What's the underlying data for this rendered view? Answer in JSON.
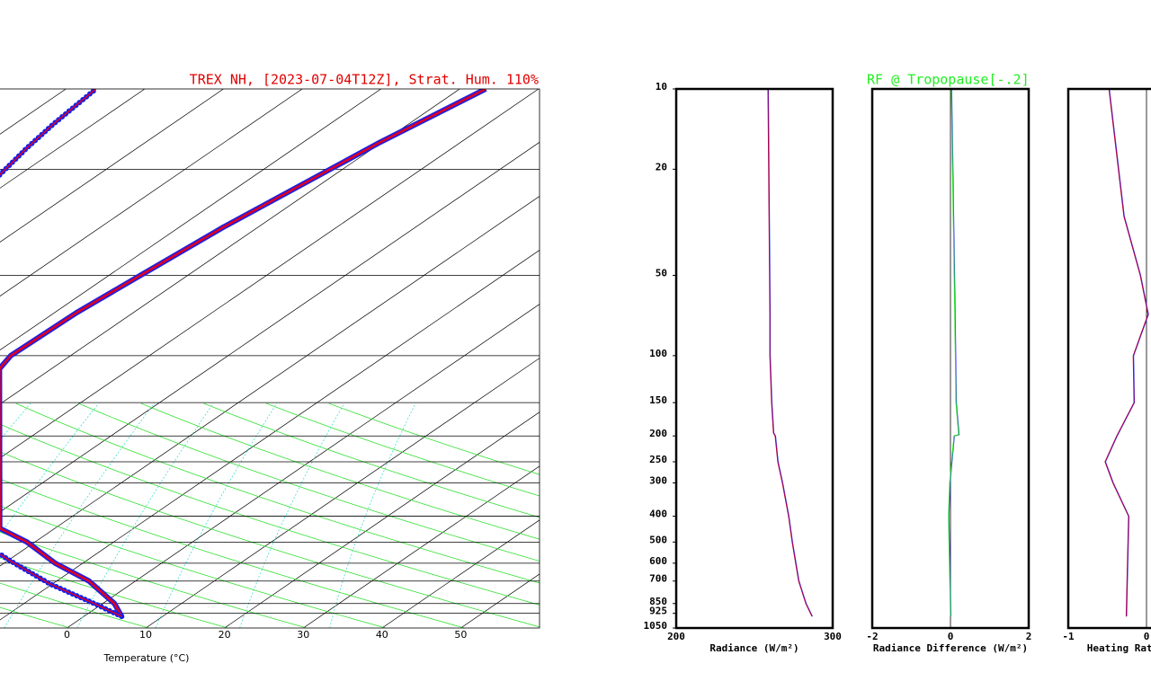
{
  "chart_data": [
    {
      "type": "skewt",
      "title": "TREX NH, [2023-07-04T12Z], Strat. Hum. 110%",
      "xlabel": "Temperature (°C)",
      "xlim": [
        -8.5,
        60
      ],
      "xticks": [
        0,
        10,
        20,
        30,
        40,
        50
      ],
      "ylim": [
        1050,
        10
      ],
      "ylog": true,
      "isobars": [
        20,
        50,
        100,
        150,
        200,
        250,
        300,
        400,
        500,
        600,
        700,
        850,
        925
      ],
      "series": [
        {
          "color": "#e00020",
          "pressure": [
            950,
            850,
            700,
            600,
            500,
            444,
            112,
            100,
            69,
            50,
            33,
            16,
            10
          ],
          "values": [
            4.8,
            1.5,
            -5.9,
            -13.5,
            -21.0,
            -27,
            -56.6,
            -57.6,
            -57.2,
            -56.0,
            -54.4,
            -50.3,
            -46.7
          ]
        },
        {
          "color": "#1020f0",
          "pressure": [
            950,
            851,
            718,
            586,
            556,
            null,
            21,
            16.7,
            13.5,
            10
          ],
          "values": [
            4.8,
            -1.0,
            -10.3,
            -19.8,
            -22.1,
            null,
            -92.5,
            -94.0,
            -95.1,
            -96.2
          ]
        }
      ]
    },
    {
      "type": "profile",
      "xlabel": "Radiance (W/m²)",
      "xlim": [
        200,
        300
      ],
      "xticks": [
        200,
        300
      ],
      "ylim": [
        1050,
        10
      ],
      "ylog": true,
      "yticks": [
        10,
        20,
        50,
        100,
        150,
        200,
        250,
        300,
        400,
        500,
        600,
        700,
        850,
        925,
        1050
      ],
      "series": [
        {
          "color": "#b00040",
          "pressure": [
            10,
            70,
            100,
            150,
            195,
            200,
            250,
            300,
            400,
            500,
            700,
            850,
            950
          ],
          "values": [
            258.6,
            259.8,
            259.8,
            260.9,
            262.1,
            263.2,
            264.9,
            267.8,
            271.8,
            274.1,
            278.2,
            282.8,
            286.8
          ]
        }
      ]
    },
    {
      "type": "profile",
      "title": "RF @ Tropopause[-.2]",
      "xlabel": "Radiance Difference (W/m²)",
      "xlim": [
        -2,
        2
      ],
      "xticks": [
        -2,
        0,
        2
      ],
      "ylim": [
        1050,
        10
      ],
      "ylog": true,
      "zero_line": true,
      "series": [
        {
          "color": "#20e020",
          "pressure": [
            10,
            70,
            150,
            198,
            200,
            300,
            400,
            950
          ],
          "values": [
            0.02,
            0.11,
            0.14,
            0.21,
            0.09,
            -0.02,
            -0.05,
            0
          ]
        }
      ]
    },
    {
      "type": "profile",
      "xlabel": "Heating Rate (K/day)",
      "xlim": [
        -1,
        1
      ],
      "xticks": [
        -1,
        0
      ],
      "ylim": [
        1050,
        10
      ],
      "ylog": true,
      "zero_line": true,
      "series": [
        {
          "color": "#b00040",
          "pressure": [
            10,
            30,
            50,
            70,
            100,
            150,
            200,
            250,
            300,
            400,
            700,
            950
          ],
          "values": [
            -0.48,
            -0.29,
            -0.08,
            0.02,
            -0.17,
            -0.16,
            -0.38,
            -0.53,
            -0.43,
            -0.23,
            -0.25,
            -0.26
          ]
        }
      ]
    }
  ]
}
